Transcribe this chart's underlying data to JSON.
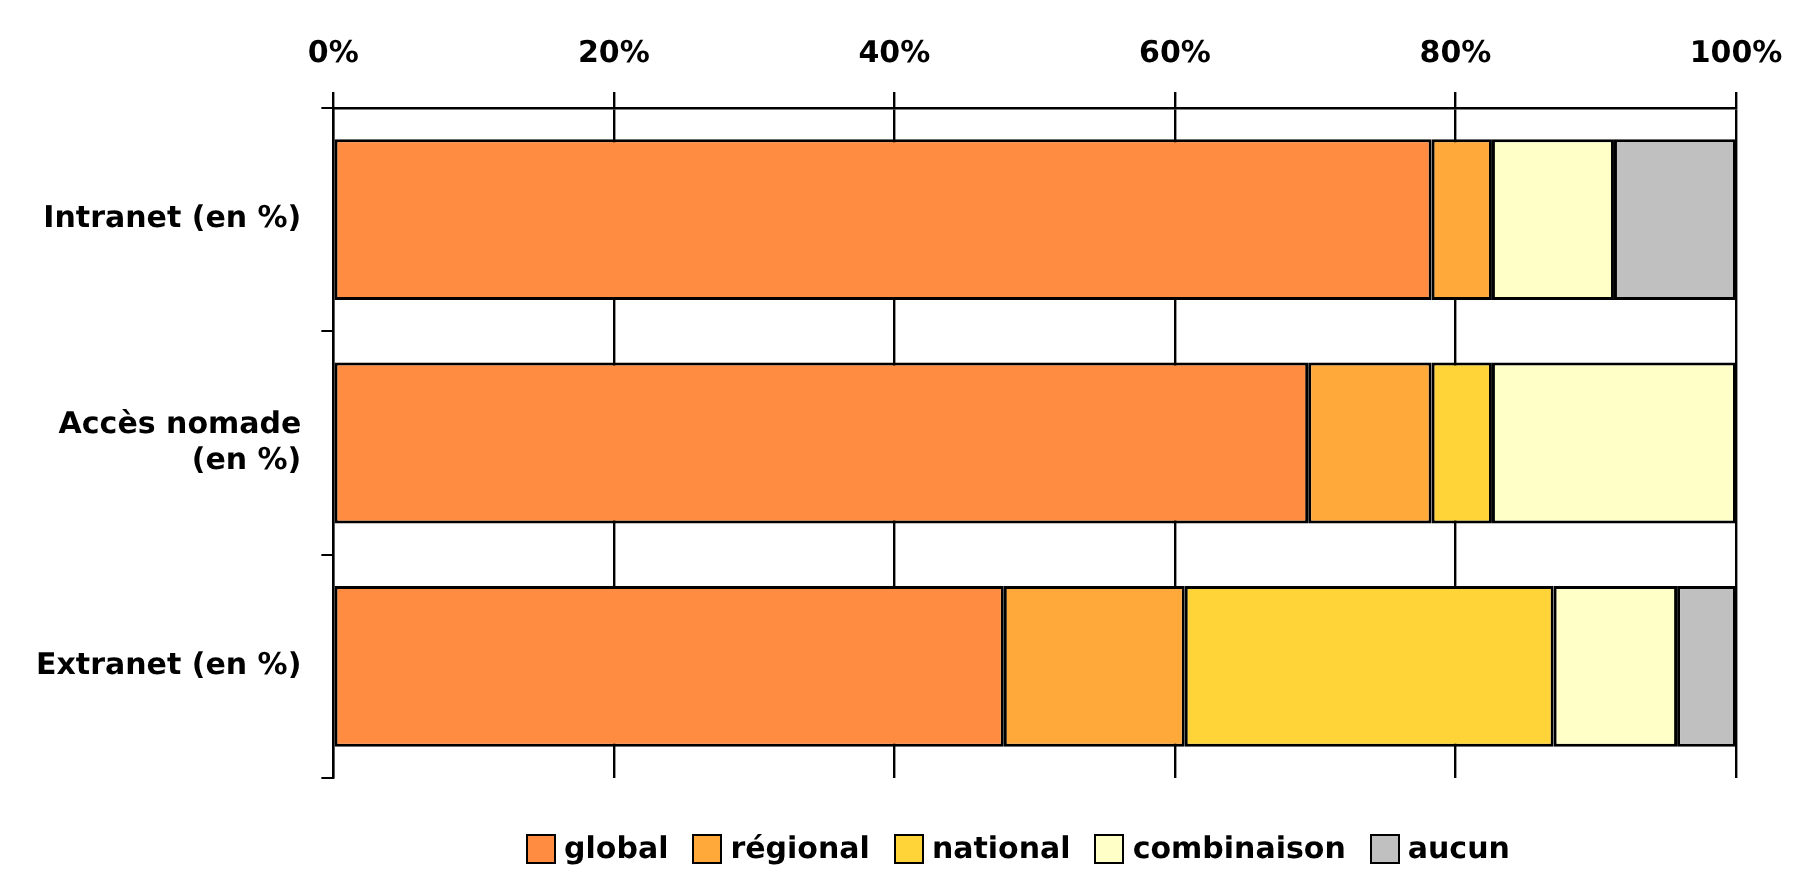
{
  "chart_data": {
    "type": "bar",
    "orientation": "horizontal",
    "stacked": true,
    "categories": [
      "Intranet (en %)",
      "Accès nomade (en %)",
      "Extranet (en %)"
    ],
    "series": [
      {
        "name": "global",
        "color": "#ff8c40",
        "values": [
          78.3,
          69.5,
          47.8
        ]
      },
      {
        "name": "régional",
        "color": "#ffa93a",
        "values": [
          4.3,
          8.8,
          12.9
        ]
      },
      {
        "name": "national",
        "color": "#ffd438",
        "values": [
          null,
          4.3,
          26.3
        ]
      },
      {
        "name": "combinaison",
        "color": "#ffffc8",
        "values": [
          8.7,
          17.4,
          8.8
        ]
      },
      {
        "name": "aucun",
        "color": "#c0c0c0",
        "values": [
          8.7,
          null,
          4.2
        ]
      }
    ],
    "xlim": [
      0,
      100
    ],
    "xticks": [
      {
        "value": 0,
        "label": "0%"
      },
      {
        "value": 20,
        "label": "20%"
      },
      {
        "value": 40,
        "label": "40%"
      },
      {
        "value": 60,
        "label": "60%"
      },
      {
        "value": 80,
        "label": "80%"
      },
      {
        "value": 100,
        "label": "100%"
      }
    ],
    "grid": "x",
    "legend": "bottom"
  }
}
